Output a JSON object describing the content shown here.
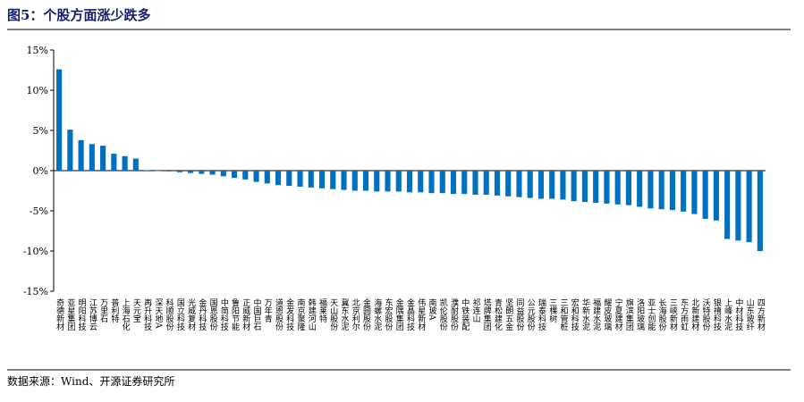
{
  "chart_data": {
    "type": "bar",
    "title": "图5：个股方面涨少跌多",
    "source": "数据来源：Wind、开源证券研究所",
    "color": "#0070c0",
    "ylim": [
      -15,
      15
    ],
    "yticks": [
      {
        "value": -15,
        "label": "-15%"
      },
      {
        "value": -10,
        "label": "-10%"
      },
      {
        "value": -5,
        "label": "-5%"
      },
      {
        "value": 0,
        "label": "0%"
      },
      {
        "value": 5,
        "label": "5%"
      },
      {
        "value": 10,
        "label": "10%"
      },
      {
        "value": 15,
        "label": "15%"
      }
    ],
    "categories": [
      "奇德新材",
      "亚星集团",
      "明阳科技",
      "江苏博云",
      "万里石",
      "普利特",
      "上海石化",
      "天元宝",
      "再升科技",
      "深天地A",
      "科顺股份",
      "国立科技",
      "光威复材",
      "金丹科技",
      "国恩股份",
      "中简科技",
      "鲁阳节能",
      "正威新材",
      "中国巨石",
      "万年青",
      "道恩股份",
      "金发科技",
      "南京聚隆",
      "韩建河山",
      "福莱特",
      "天山股份",
      "冀东水泥",
      "北京利尔",
      "金圆股份",
      "海螺水泥",
      "东宏股份",
      "金隅集团",
      "金晶科技",
      "伟星新材",
      "南玻A",
      "凯伦股份",
      "濮耐股份",
      "中铁装配",
      "祁连山",
      "塔牌集团",
      "青松建化",
      "坚朗五金",
      "同益股份",
      "公元股份",
      "瑞泰科技",
      "三棵树",
      "三和管桩",
      "宏和科技",
      "华新水泥",
      "福建水泥",
      "耀皮玻璃",
      "宁夏建材",
      "旗滨集团",
      "洛阳玻璃",
      "亚士创能",
      "长海股份",
      "三峡新材",
      "东方雨虹",
      "北新建材",
      "沃特股份",
      "银禧科技",
      "上峰水泥",
      "中材科技",
      "山东玻纤",
      "四方新材"
    ],
    "values": [
      12.6,
      5.1,
      3.8,
      3.3,
      3.1,
      2.1,
      1.8,
      1.5,
      0.05,
      -0.05,
      -0.1,
      -0.2,
      -0.3,
      -0.4,
      -0.5,
      -0.7,
      -0.9,
      -1.1,
      -1.4,
      -1.6,
      -1.8,
      -1.9,
      -2.0,
      -2.1,
      -2.2,
      -2.3,
      -2.4,
      -2.5,
      -2.5,
      -2.6,
      -2.6,
      -2.6,
      -2.7,
      -2.7,
      -2.8,
      -2.8,
      -2.9,
      -2.9,
      -3.0,
      -3.0,
      -3.1,
      -3.2,
      -3.3,
      -3.4,
      -3.5,
      -3.5,
      -3.6,
      -3.8,
      -3.9,
      -4.0,
      -4.1,
      -4.2,
      -4.3,
      -4.5,
      -4.7,
      -4.8,
      -4.9,
      -5.1,
      -5.4,
      -6.0,
      -6.2,
      -8.5,
      -8.7,
      -8.9,
      -10.0
    ]
  }
}
